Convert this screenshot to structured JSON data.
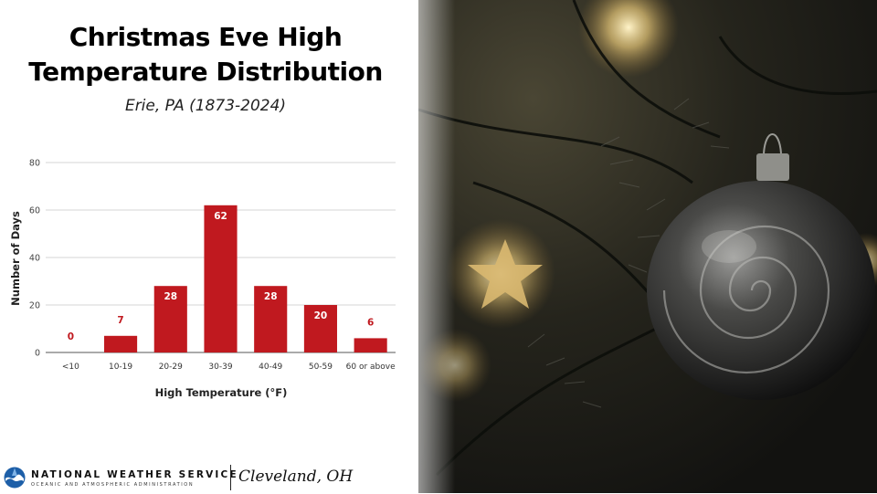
{
  "header": {
    "title_line1": "Christmas Eve High",
    "title_line2": "Temperature Distribution",
    "subtitle": "Erie, PA (1873-2024)"
  },
  "chart_data": {
    "type": "bar",
    "categories": [
      "<10",
      "10-19",
      "20-29",
      "30-39",
      "40-49",
      "50-59",
      "60 or above"
    ],
    "values": [
      0,
      7,
      28,
      62,
      28,
      20,
      6
    ],
    "xlabel": "High Temperature (°F)",
    "ylabel": "Number of Days",
    "ylim": [
      0,
      80
    ],
    "yticks": [
      0,
      20,
      40,
      60,
      80
    ],
    "grid": true,
    "bar_color": "#c0191f",
    "label_color_inside": "#ffffff",
    "label_color_outside": "#c0191f"
  },
  "footer": {
    "agency_name": "NATIONAL WEATHER SERVICE",
    "agency_subname": "OCEANIC AND ATMOSPHERIC ADMINISTRATION",
    "office": "Cleveland, OH"
  },
  "photo": {
    "subject": "christmas-ornament-photo"
  }
}
